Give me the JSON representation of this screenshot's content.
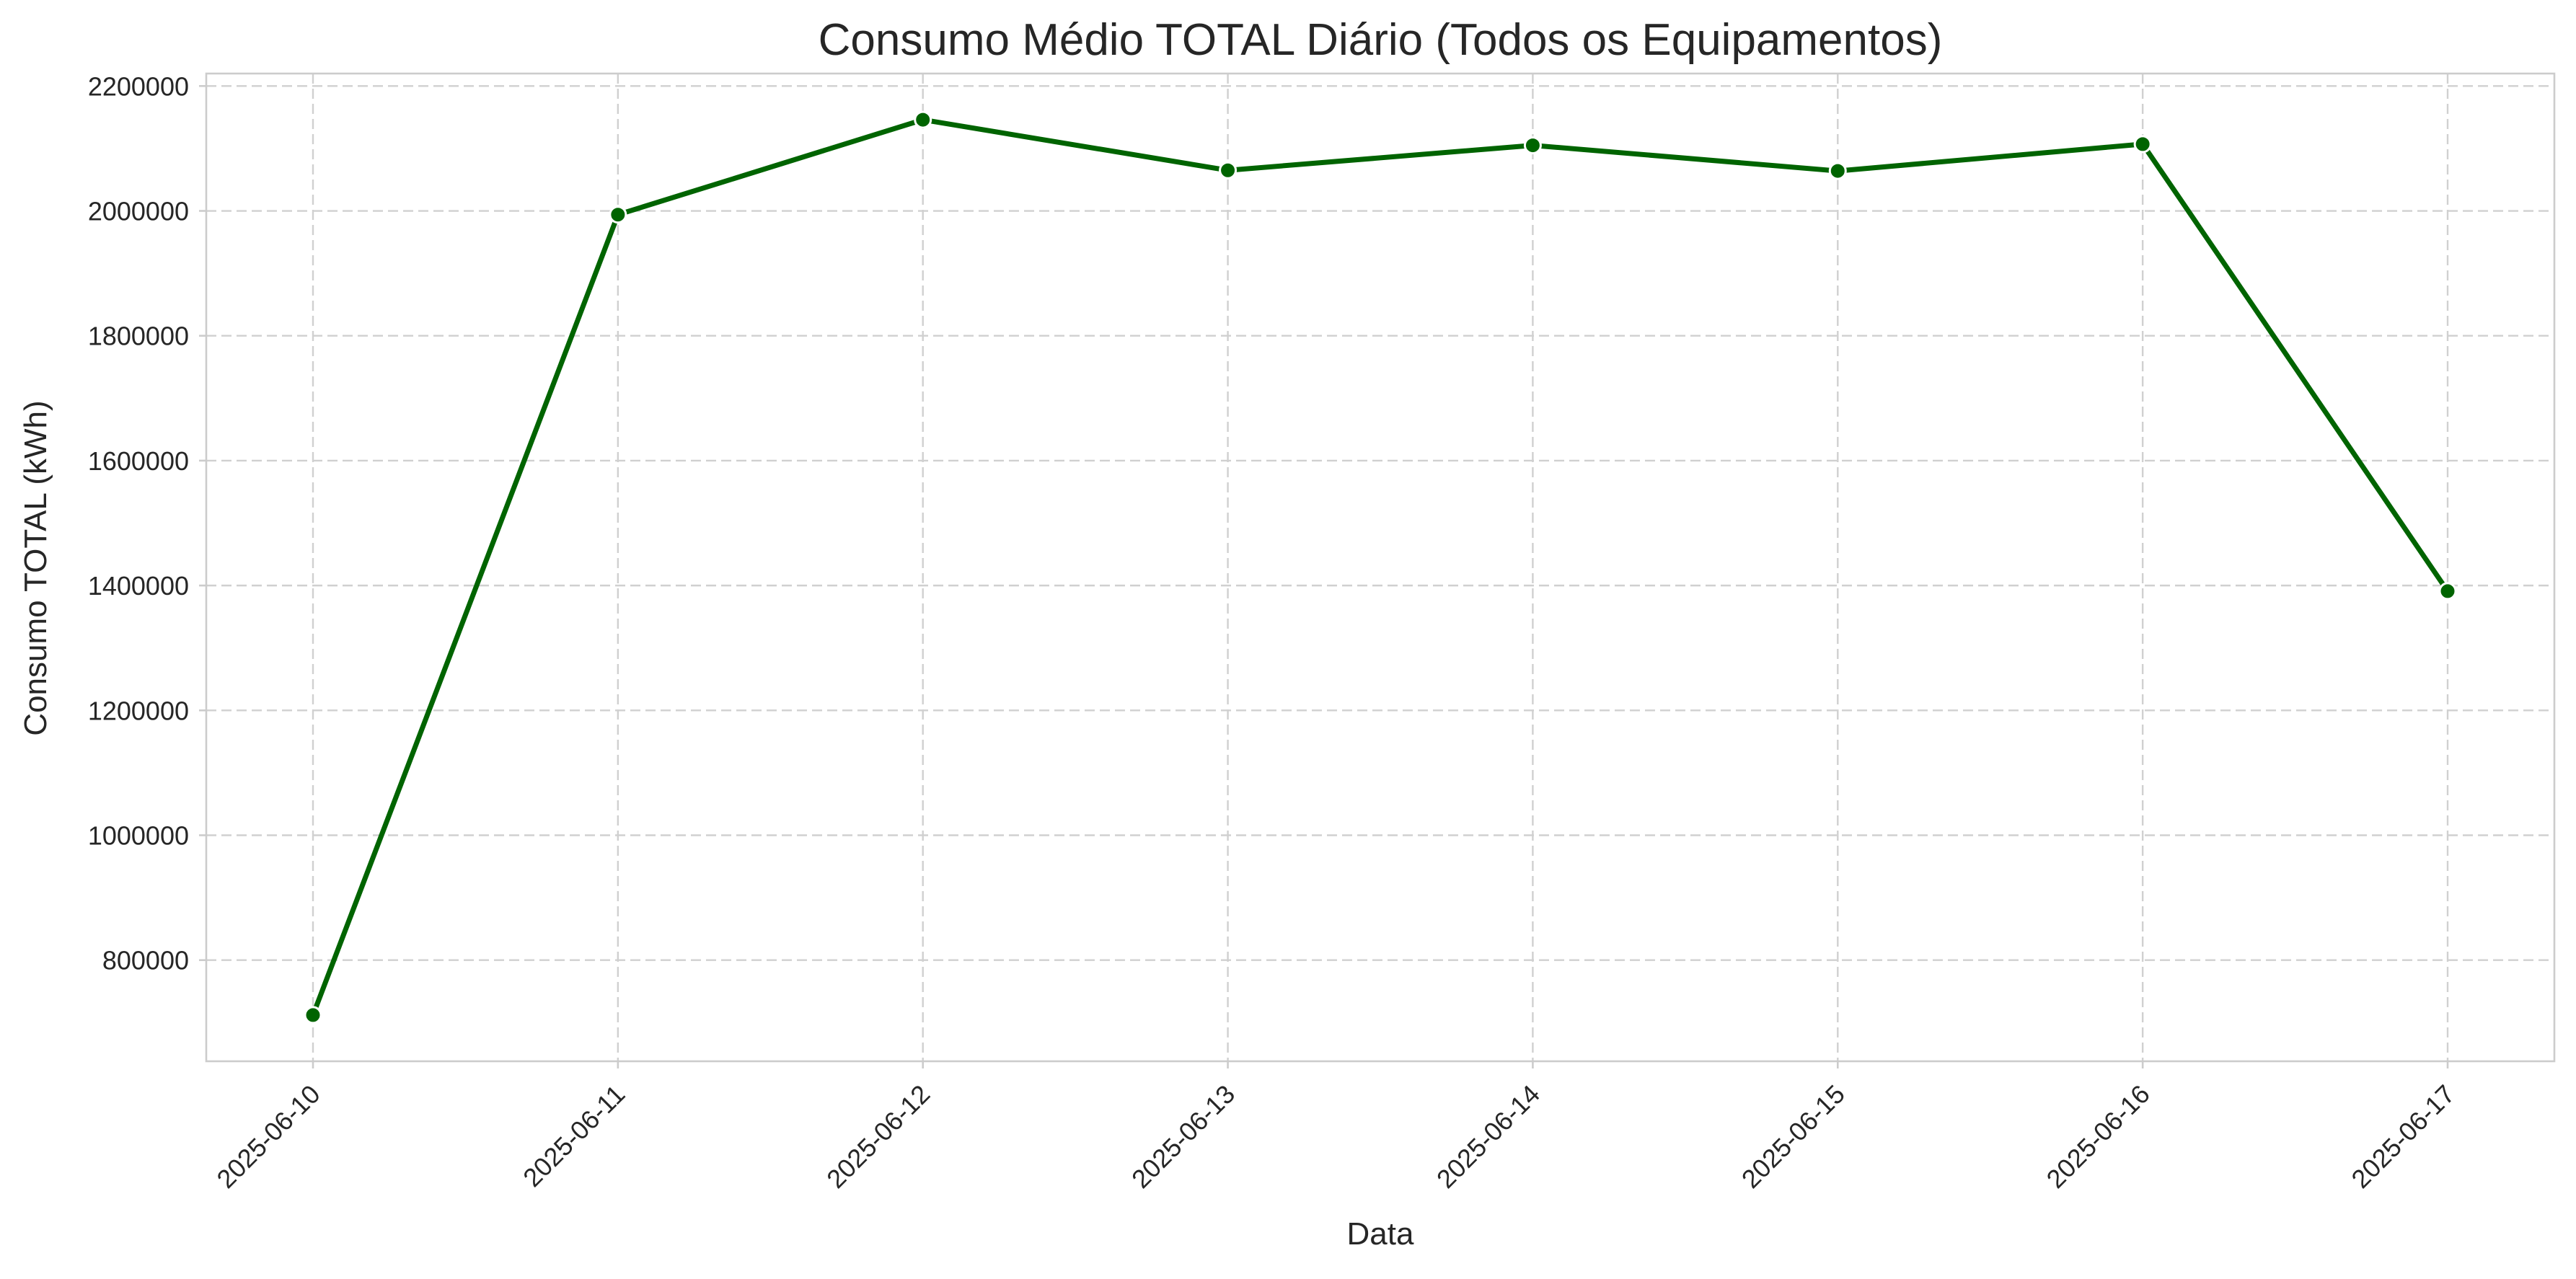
{
  "chart_data": {
    "type": "line",
    "title": "Consumo Médio TOTAL Diário (Todos os Equipamentos)",
    "xlabel": "Data",
    "ylabel": "Consumo TOTAL (kWh)",
    "x": [
      "2025-06-10",
      "2025-06-11",
      "2025-06-12",
      "2025-06-13",
      "2025-06-14",
      "2025-06-15",
      "2025-06-16",
      "2025-06-17"
    ],
    "series": [
      {
        "values": [
          712000,
          1994000,
          2146000,
          2065000,
          2105000,
          2064000,
          2107000,
          1391000
        ],
        "color": "#006400"
      }
    ],
    "yticks": [
      800000,
      1000000,
      1200000,
      1400000,
      1600000,
      1800000,
      2000000,
      2200000
    ],
    "ylim": [
      638000,
      2220000
    ],
    "grid": true,
    "legend": "none",
    "marker": "circle"
  }
}
